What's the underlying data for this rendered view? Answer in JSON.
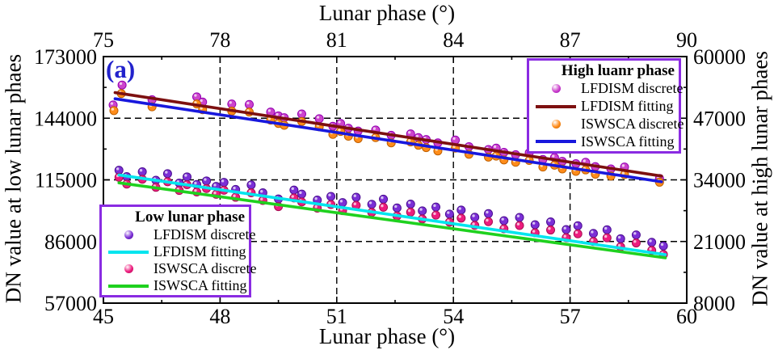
{
  "figure": {
    "panel_label": "(a)"
  },
  "style": {
    "panel_label_color": "#2222CC",
    "legend_border_color": "#8A2BE2",
    "grid_color": "#000000",
    "frame_color": "#000000"
  },
  "axes": {
    "top": {
      "label": "Lunar phase (°)",
      "range": [
        75,
        90
      ],
      "ticks": [
        75,
        78,
        81,
        84,
        87,
        90
      ]
    },
    "bottom": {
      "label": "Lunar phase (°)",
      "range": [
        45,
        60
      ],
      "ticks": [
        45,
        48,
        51,
        54,
        57,
        60
      ]
    },
    "left": {
      "label": "DN value at low lunar phaes",
      "range": [
        57000,
        173000
      ],
      "ticks": [
        57000,
        86000,
        115000,
        144000,
        173000
      ]
    },
    "right": {
      "label": "DN value at high lunar phaes",
      "range": [
        8000,
        60000
      ],
      "ticks": [
        8000,
        21000,
        34000,
        47000,
        60000
      ]
    }
  },
  "legends": {
    "high": {
      "title": "High luanr phase",
      "items": [
        {
          "label": "LFDISM discrete",
          "symbol": "dot",
          "color": "#CC44CC",
          "edge": "#9400B3"
        },
        {
          "label": "LFDISM fitting",
          "symbol": "line",
          "color": "#7D1010"
        },
        {
          "label": "ISWSCA discrete",
          "symbol": "dot",
          "color": "#FF8C1A",
          "edge": "#C06000"
        },
        {
          "label": "ISWSCA fitting",
          "symbol": "line",
          "color": "#1818DD"
        }
      ]
    },
    "low": {
      "title": "Low lunar phase",
      "items": [
        {
          "label": "LFDISM discrete",
          "symbol": "dot",
          "color": "#7B2FD6",
          "edge": "#4B0E91"
        },
        {
          "label": "LFDISM fitting",
          "symbol": "line",
          "color": "#00E5EE"
        },
        {
          "label": "ISWSCA discrete",
          "symbol": "dot",
          "color": "#EE1C7E",
          "edge": "#A80F52"
        },
        {
          "label": "ISWSCA fitting",
          "symbol": "line",
          "color": "#1FD11F"
        }
      ]
    }
  },
  "chart_data": {
    "type": "scatter",
    "grid": "dashed",
    "panels": [
      {
        "name": "high-lunar-phase",
        "x_axis": "top",
        "y_axis": "right",
        "series": [
          {
            "name": "LFDISM discrete",
            "kind": "scatter",
            "color": "#CC44CC",
            "edge": "#9400B3",
            "x": [
              75.25,
              75.48,
              76.25,
              77.4,
              77.55,
              78.3,
              78.75,
              79.3,
              79.5,
              79.65,
              80.1,
              80.55,
              80.9,
              81.1,
              81.3,
              81.55,
              82.0,
              82.4,
              82.9,
              83.1,
              83.3,
              83.6,
              84.05,
              84.4,
              84.9,
              85.1,
              85.3,
              85.6,
              85.95,
              86.3,
              86.6,
              86.8,
              87.15,
              87.4,
              87.65,
              88.05,
              88.4,
              89.3
            ],
            "y": [
              49800,
              54000,
              50900,
              51500,
              50400,
              50000,
              49900,
              48300,
              47500,
              47100,
              47900,
              46900,
              45300,
              45900,
              44900,
              44300,
              44500,
              43400,
              43700,
              42900,
              42500,
              41800,
              42400,
              41000,
              40400,
              40700,
              39800,
              39300,
              39700,
              38300,
              38700,
              37900,
              37400,
              37700,
              36800,
              36300,
              36700,
              34300
            ]
          },
          {
            "name": "ISWSCA discrete",
            "kind": "scatter",
            "color": "#FF8C1A",
            "edge": "#C06000",
            "x": [
              75.27,
              75.46,
              76.25,
              77.4,
              77.55,
              78.3,
              78.75,
              79.3,
              79.5,
              79.65,
              80.1,
              80.55,
              80.9,
              81.1,
              81.3,
              81.55,
              82.0,
              82.4,
              82.9,
              83.1,
              83.3,
              83.6,
              84.05,
              84.4,
              84.9,
              85.1,
              85.3,
              85.6,
              85.95,
              86.3,
              86.6,
              86.8,
              87.15,
              87.4,
              87.65,
              88.05,
              88.4,
              89.3
            ],
            "y": [
              48600,
              52200,
              49400,
              50000,
              48800,
              48500,
              48300,
              46600,
              45900,
              45500,
              46300,
              45200,
              43600,
              44200,
              43200,
              42700,
              42900,
              41800,
              42000,
              41300,
              40800,
              40100,
              40700,
              39400,
              38800,
              39000,
              38200,
              37700,
              38100,
              36700,
              37100,
              36300,
              35800,
              36100,
              35200,
              34800,
              35100,
              33500
            ]
          },
          {
            "name": "LFDISM fitting",
            "kind": "line",
            "color": "#7D1010",
            "x": [
              75.3,
              89.35
            ],
            "y": [
              52400,
              34800
            ]
          },
          {
            "name": "ISWSCA fitting",
            "kind": "line",
            "color": "#1818DD",
            "x": [
              75.3,
              89.35
            ],
            "y": [
              51100,
              33600
            ]
          }
        ]
      },
      {
        "name": "low-lunar-phase",
        "x_axis": "bottom",
        "y_axis": "left",
        "series": [
          {
            "name": "LFDISM discrete",
            "kind": "scatter",
            "color": "#7B2FD6",
            "edge": "#4B0E91",
            "x": [
              45.4,
              45.6,
              46.0,
              46.35,
              46.65,
              46.95,
              47.15,
              47.4,
              47.65,
              47.9,
              48.1,
              48.4,
              48.8,
              49.1,
              49.5,
              49.9,
              50.1,
              50.5,
              50.85,
              51.15,
              51.5,
              51.9,
              52.2,
              52.55,
              52.9,
              53.2,
              53.55,
              53.9,
              54.2,
              54.55,
              54.9,
              55.3,
              55.7,
              56.1,
              56.5,
              56.9,
              57.2,
              57.6,
              57.95,
              58.3,
              58.7,
              59.1,
              59.4
            ],
            "y": [
              119500,
              116500,
              118800,
              114800,
              117900,
              113500,
              116400,
              112800,
              114500,
              111900,
              113800,
              110500,
              112600,
              108900,
              106000,
              110200,
              108300,
              105500,
              107200,
              104300,
              106800,
              103500,
              105900,
              101800,
              103600,
              100400,
              102200,
              98900,
              100800,
              97400,
              99100,
              95800,
              97300,
              93900,
              95200,
              91600,
              93400,
              89800,
              91500,
              87300,
              89100,
              85600,
              83900
            ]
          },
          {
            "name": "ISWSCA discrete",
            "kind": "scatter",
            "color": "#EE1C7E",
            "edge": "#A80F52",
            "x": [
              45.4,
              45.6,
              46.0,
              46.35,
              46.65,
              46.95,
              47.15,
              47.4,
              47.65,
              47.9,
              48.1,
              48.4,
              48.8,
              49.1,
              49.5,
              49.9,
              50.1,
              50.5,
              50.85,
              51.15,
              51.5,
              51.9,
              52.2,
              52.55,
              52.9,
              53.2,
              53.55,
              53.9,
              54.2,
              54.55,
              54.9,
              55.3,
              55.7,
              56.1,
              56.5,
              56.9,
              57.2,
              57.6,
              57.95,
              58.3,
              58.7,
              59.1,
              59.4
            ],
            "y": [
              116200,
              113000,
              115300,
              111500,
              114100,
              110000,
              112700,
              109300,
              110900,
              108200,
              110100,
              106800,
              108900,
              105300,
              102400,
              106500,
              104600,
              101700,
              103400,
              100500,
              103000,
              99700,
              102100,
              98000,
              99800,
              96600,
              98400,
              95100,
              97000,
              93600,
              95300,
              92000,
              93500,
              90100,
              91400,
              87800,
              89600,
              86000,
              87700,
              83500,
              85300,
              81800,
              79900
            ]
          },
          {
            "name": "LFDISM fitting",
            "kind": "line",
            "color": "#00E5EE",
            "x": [
              45.4,
              59.45
            ],
            "y": [
              117300,
              79800
            ]
          },
          {
            "name": "ISWSCA fitting",
            "kind": "line",
            "color": "#1FD11F",
            "x": [
              45.4,
              59.45
            ],
            "y": [
              113600,
              78300
            ]
          }
        ]
      }
    ]
  }
}
